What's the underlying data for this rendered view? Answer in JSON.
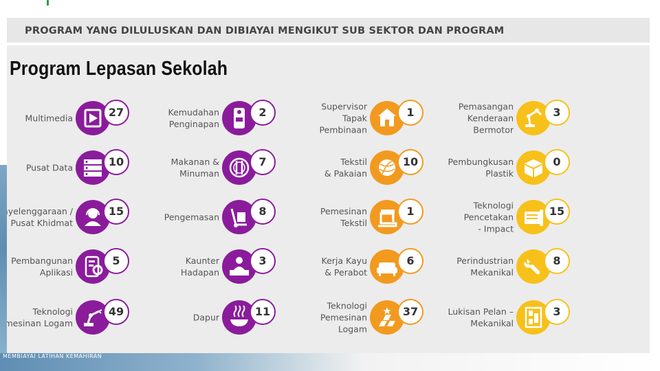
{
  "header": {
    "title": "PROGRAM YANG DILULUSKAN DAN DIBIAYAI MENGIKUT SUB SEKTOR DAN  PROGRAM"
  },
  "panel": {
    "title": "Program Lepasan Sekolah"
  },
  "footer": {
    "caption": "MEMBIAYAI LATIHAN KEMAHIRAN"
  },
  "colors": {
    "purple": "#8a1c9c",
    "orange": "#f29a1f",
    "yellow": "#f7c11a"
  },
  "columns": [
    {
      "color": "purple",
      "items": [
        {
          "lines": [
            "Multimedia"
          ],
          "value": "27",
          "icon": "play-icon"
        },
        {
          "lines": [
            "Pusat Data"
          ],
          "value": "10",
          "icon": "server-icon"
        },
        {
          "lines": [
            "Penyelenggaraan /",
            "Pusat Khidmat"
          ],
          "value": "15",
          "icon": "headset-agent-icon"
        },
        {
          "lines": [
            "Pembangunan",
            "Aplikasi"
          ],
          "value": "5",
          "icon": "tablet-gear-icon"
        },
        {
          "lines": [
            "Teknologi",
            "Pemesinan Logam"
          ],
          "value": "49",
          "icon": "robot-arm-icon"
        }
      ]
    },
    {
      "color": "purple",
      "items": [
        {
          "lines": [
            "Kemudahan",
            "Penginapan"
          ],
          "value": "2",
          "icon": "door-hanger-icon"
        },
        {
          "lines": [
            "Makanan &",
            "Minuman"
          ],
          "value": "7",
          "icon": "plate-cutlery-icon"
        },
        {
          "lines": [
            "Pengemasan"
          ],
          "value": "8",
          "icon": "hand-truck-icon"
        },
        {
          "lines": [
            "Kaunter",
            "Hadapan"
          ],
          "value": "3",
          "icon": "reception-desk-icon"
        },
        {
          "lines": [
            "Dapur"
          ],
          "value": "11",
          "icon": "hot-dish-icon"
        }
      ]
    },
    {
      "color": "orange",
      "items": [
        {
          "lines": [
            "Supervisor",
            "Tapak",
            "Pembinaan"
          ],
          "value": "1",
          "icon": "house-construction-icon"
        },
        {
          "lines": [
            "Tekstil",
            "& Pakaian"
          ],
          "value": "10",
          "icon": "yarn-ball-icon"
        },
        {
          "lines": [
            "Pemesinan",
            "Tekstil"
          ],
          "value": "1",
          "icon": "sewing-machine-icon"
        },
        {
          "lines": [
            "Kerja Kayu",
            "& Perabot"
          ],
          "value": "6",
          "icon": "sofa-icon"
        },
        {
          "lines": [
            "Teknologi",
            "Pemesinan",
            "Logam"
          ],
          "value": "37",
          "icon": "metal-bars-icon"
        }
      ]
    },
    {
      "color": "yellow",
      "items": [
        {
          "lines": [
            "Pemasangan",
            "Kenderaan",
            "Bermotor"
          ],
          "value": "3",
          "icon": "assembly-robot-icon"
        },
        {
          "lines": [
            "Pembungkusan",
            "Plastik"
          ],
          "value": "0",
          "icon": "package-box-icon"
        },
        {
          "lines": [
            "Teknologi",
            "Pencetakan",
            "- Impact"
          ],
          "value": "15",
          "icon": "printer-roll-icon"
        },
        {
          "lines": [
            "Perindustrian",
            "Mekanikal"
          ],
          "value": "8",
          "icon": "wrench-hand-icon"
        },
        {
          "lines": [
            "Lukisan Pelan –",
            "Mekanikal"
          ],
          "value": "3",
          "icon": "blueprint-icon"
        }
      ]
    }
  ]
}
